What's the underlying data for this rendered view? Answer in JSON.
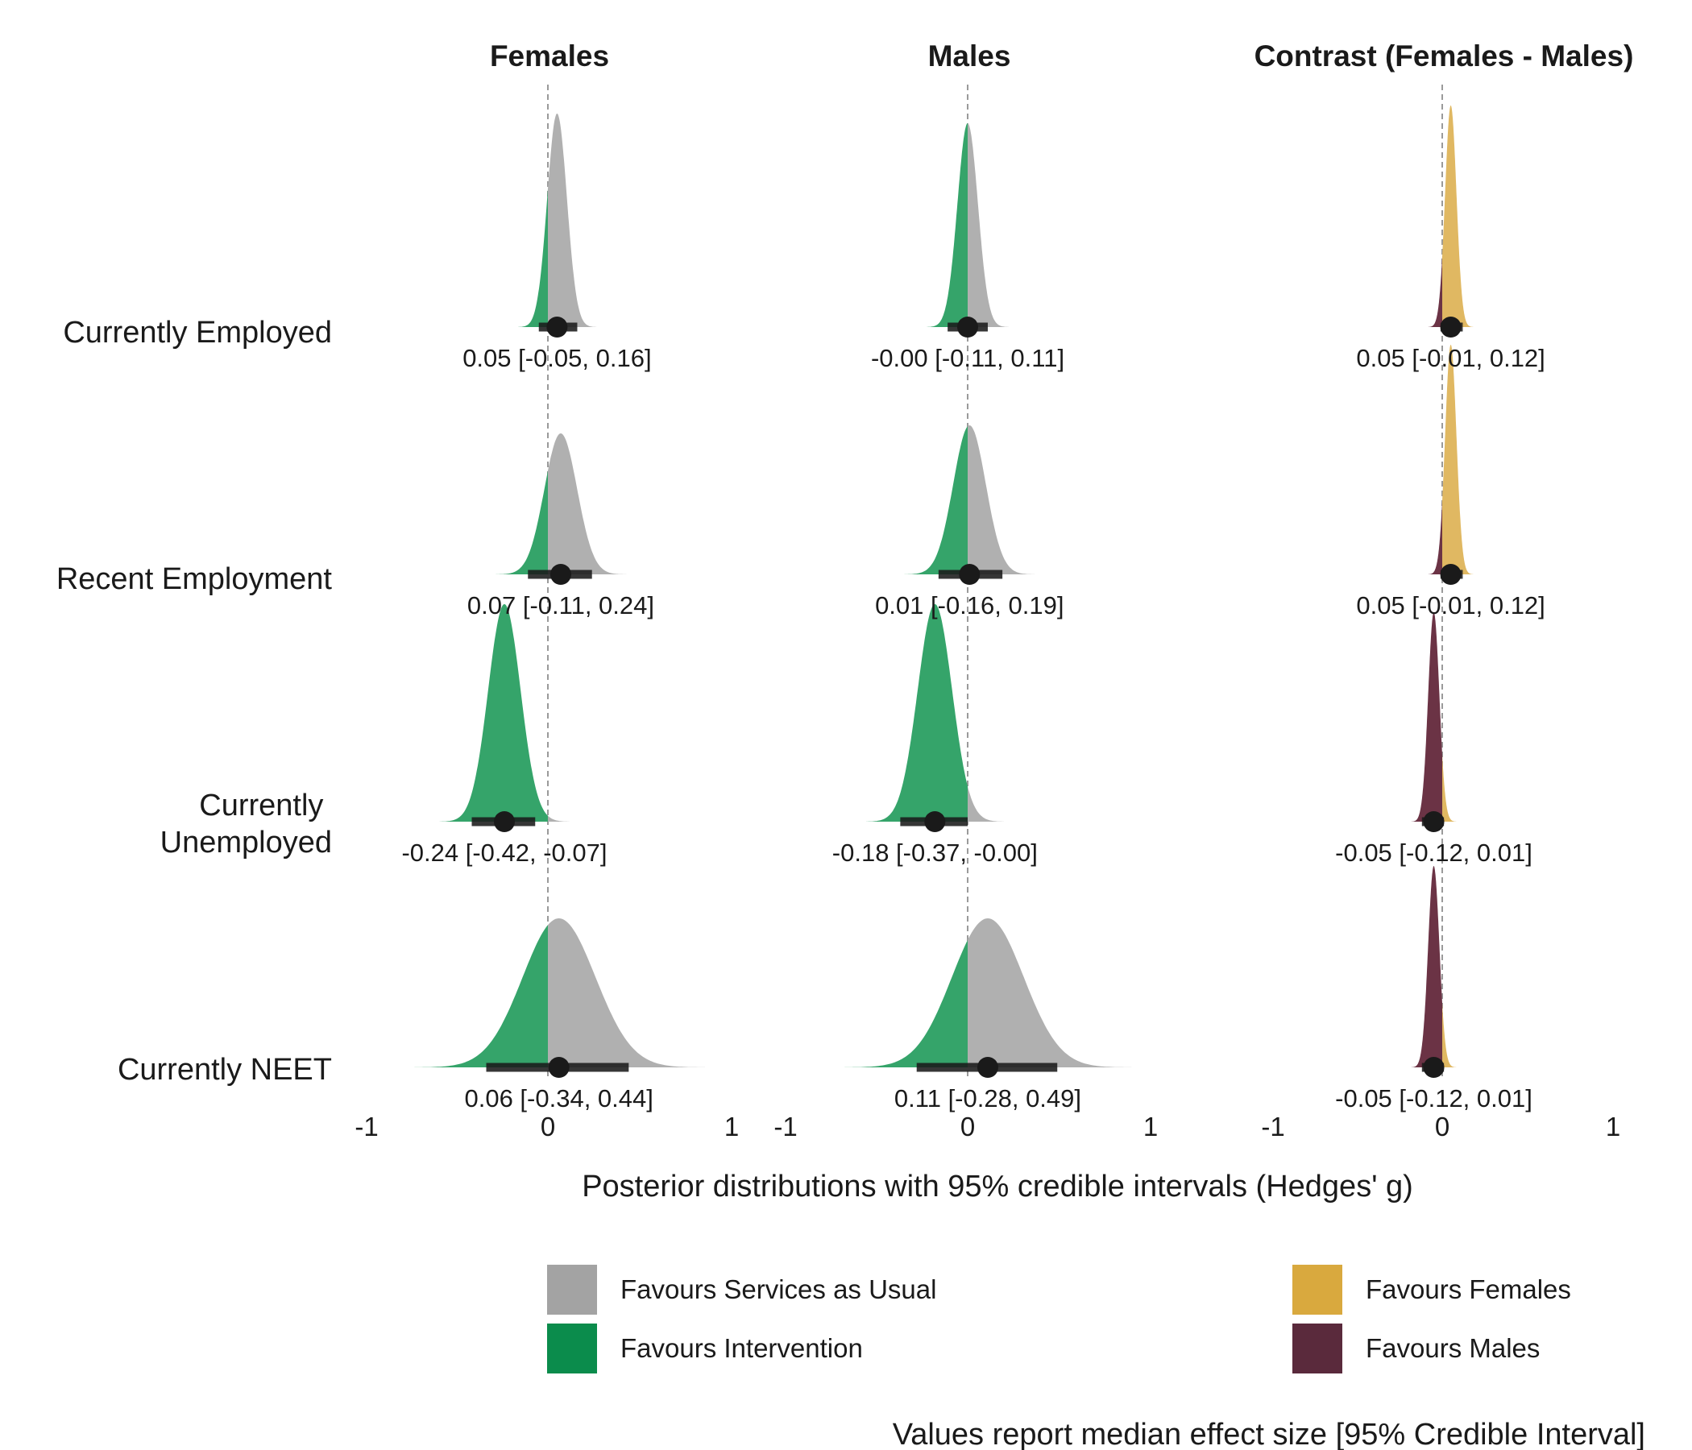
{
  "chart_data": {
    "type": "area",
    "subtype": "ridgeline-posterior-densities",
    "panels": [
      "Females",
      "Males",
      "Contrast (Females - Males)"
    ],
    "rows": [
      "Currently Employed",
      "Recent Employment",
      "Currently\nUnemployed",
      "Currently NEET"
    ],
    "xlim": [
      -1,
      1
    ],
    "x_ticks": [
      "-1",
      "0",
      "1"
    ],
    "reference_line": 0,
    "grid": false,
    "xlabel": "Posterior distributions with 95% credible intervals (Hedges' g)",
    "caption": "Values report median effect size [95% Credible Interval]",
    "estimates": [
      [
        {
          "median": 0.05,
          "lower": -0.05,
          "upper": 0.16,
          "label": "0.05 [-0.05, 0.16]"
        },
        {
          "median": 0.07,
          "lower": -0.11,
          "upper": 0.24,
          "label": "0.07 [-0.11, 0.24]"
        },
        {
          "median": -0.24,
          "lower": -0.42,
          "upper": -0.07,
          "label": "-0.24 [-0.42, -0.07]"
        },
        {
          "median": 0.06,
          "lower": -0.34,
          "upper": 0.44,
          "label": "0.06 [-0.34, 0.44]"
        }
      ],
      [
        {
          "median": -0.0,
          "lower": -0.11,
          "upper": 0.11,
          "label": "-0.00 [-0.11, 0.11]"
        },
        {
          "median": 0.01,
          "lower": -0.16,
          "upper": 0.19,
          "label": "0.01 [-0.16, 0.19]"
        },
        {
          "median": -0.18,
          "lower": -0.37,
          "upper": -0.0,
          "label": "-0.18 [-0.37, -0.00]"
        },
        {
          "median": 0.11,
          "lower": -0.28,
          "upper": 0.49,
          "label": "0.11 [-0.28, 0.49]"
        }
      ],
      [
        {
          "median": 0.05,
          "lower": -0.01,
          "upper": 0.12,
          "label": "0.05 [-0.01, 0.12]"
        },
        {
          "median": 0.05,
          "lower": -0.01,
          "upper": 0.12,
          "label": "0.05 [-0.01, 0.12]"
        },
        {
          "median": -0.05,
          "lower": -0.12,
          "upper": 0.01,
          "label": "-0.05 [-0.12, 0.01]"
        },
        {
          "median": -0.05,
          "lower": -0.12,
          "upper": 0.01,
          "label": "-0.05 [-0.12, 0.01]"
        }
      ]
    ],
    "legend": {
      "placement": "bottom",
      "outcome_panels": [
        {
          "label": "Favours Services as Usual",
          "color": "#a3a3a3"
        },
        {
          "label": "Favours Intervention",
          "color": "#0b8c4c"
        }
      ],
      "contrast_panel": [
        {
          "label": "Favours Females",
          "color": "#d9a93e"
        },
        {
          "label": "Favours Males",
          "color": "#5a2a3c"
        }
      ]
    },
    "colors": {
      "services_as_usual": "#b0b0b0",
      "intervention": "#35a46a",
      "females": "#e0b862",
      "males": "#6b3345",
      "interval": "#1a1a1a",
      "reference_line": "#9a9a9a"
    }
  }
}
